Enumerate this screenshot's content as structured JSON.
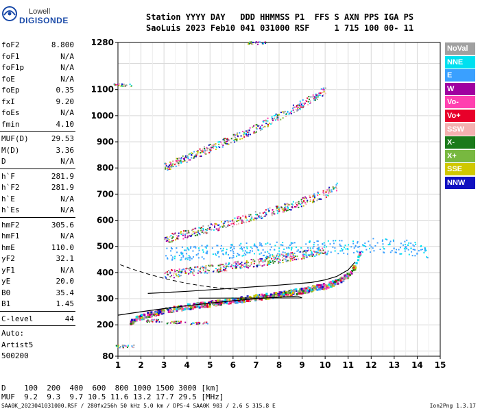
{
  "logo": {
    "line1": "Lowell",
    "line2": "DIGISONDE"
  },
  "header": {
    "line1": "Station YYYY DAY   DDD HHMMSS P1  FFS S AXN PPS IGA PS",
    "line2": "SaoLuis 2023 Feb10 041 031000 RSF     1 715 100 00- 11"
  },
  "params": {
    "group1": [
      {
        "name": "foF2",
        "value": "8.800"
      },
      {
        "name": "foF1",
        "value": "N/A"
      },
      {
        "name": "foF1p",
        "value": "N/A"
      },
      {
        "name": "foE",
        "value": "N/A"
      },
      {
        "name": "foEp",
        "value": "0.35"
      },
      {
        "name": "fxI",
        "value": "9.20"
      },
      {
        "name": "foEs",
        "value": "N/A"
      },
      {
        "name": "fmin",
        "value": "4.10"
      }
    ],
    "group2": [
      {
        "name": "MUF(D)",
        "value": "29.53"
      },
      {
        "name": "M(D)",
        "value": "3.36"
      },
      {
        "name": "D",
        "value": "N/A"
      }
    ],
    "group3": [
      {
        "name": "h`F",
        "value": "281.9"
      },
      {
        "name": "h`F2",
        "value": "281.9"
      },
      {
        "name": "h`E",
        "value": "N/A"
      },
      {
        "name": "h`Es",
        "value": "N/A"
      }
    ],
    "group4": [
      {
        "name": "hmF2",
        "value": "305.6"
      },
      {
        "name": "hmF1",
        "value": "N/A"
      },
      {
        "name": "hmE",
        "value": "110.0"
      },
      {
        "name": "yF2",
        "value": "32.1"
      },
      {
        "name": "yF1",
        "value": "N/A"
      },
      {
        "name": "yE",
        "value": "20.0"
      },
      {
        "name": "B0",
        "value": "35.4"
      },
      {
        "name": "B1",
        "value": "1.45"
      }
    ],
    "clevel": {
      "name": "C-level",
      "value": "44"
    },
    "auto": "Auto:",
    "artist": "Artist5",
    "code": "500200"
  },
  "legend": [
    {
      "label": "NoVal",
      "color": "#a0a0a0"
    },
    {
      "label": "NNE",
      "color": "#00e0f0"
    },
    {
      "label": "E",
      "color": "#3aa0ff"
    },
    {
      "label": "W",
      "color": "#a000a0"
    },
    {
      "label": "Vo-",
      "color": "#ff40b0"
    },
    {
      "label": "Vo+",
      "color": "#e8002a"
    },
    {
      "label": "SSW",
      "color": "#f4b0b0"
    },
    {
      "label": "X-",
      "color": "#1a7a1a"
    },
    {
      "label": "X+",
      "color": "#78b840"
    },
    {
      "label": "SSE",
      "color": "#d0c800"
    },
    {
      "label": "NNW",
      "color": "#1010c0"
    }
  ],
  "bottom": {
    "d_row": "D    100  200  400  600  800 1000 1500 3000 [km]",
    "muf_row": "MUF  9.2  9.3  9.7 10.5 11.6 13.2 17.7 29.5 [MHz]"
  },
  "footer": "SAA0K_2023041031000.RSF / 280fx256h 50 kHz 5.0 km / DPS-4 SAA0K 903 / 2.6 S 315.8 E",
  "version": "Ion2Png 1.3.17",
  "chart_data": {
    "type": "scatter",
    "title": "",
    "xlabel": "",
    "ylabel": "",
    "xlim": [
      1,
      15
    ],
    "ylim": [
      80,
      1280
    ],
    "xticks": [
      1,
      2,
      3,
      4,
      5,
      6,
      7,
      8,
      9,
      10,
      11,
      12,
      13,
      14,
      15
    ],
    "yticks": [
      80,
      200,
      300,
      400,
      500,
      600,
      700,
      800,
      900,
      1000,
      1100,
      1280
    ],
    "trace_lower": [
      [
        1.0,
        237
      ],
      [
        2.0,
        250
      ],
      [
        3.0,
        262
      ],
      [
        4.0,
        273
      ],
      [
        5.0,
        283
      ],
      [
        6.0,
        292
      ],
      [
        7.0,
        300
      ],
      [
        8.0,
        306
      ],
      [
        8.8,
        310
      ]
    ],
    "trace_upper": [
      [
        2.3,
        320
      ],
      [
        4.0,
        328
      ],
      [
        6.0,
        340
      ],
      [
        8.0,
        352
      ],
      [
        9.4,
        362
      ],
      [
        10.0,
        372
      ],
      [
        10.5,
        385
      ],
      [
        11.0,
        410
      ],
      [
        11.3,
        440
      ]
    ],
    "echo_traces": [
      {
        "name": "F2 first hop",
        "points": [
          [
            1.5,
            215
          ],
          [
            2.2,
            240
          ],
          [
            3.0,
            258
          ],
          [
            4.0,
            272
          ],
          [
            5.0,
            284
          ],
          [
            6.0,
            296
          ],
          [
            7.0,
            308
          ],
          [
            8.0,
            320
          ],
          [
            9.0,
            334
          ],
          [
            10.0,
            352
          ],
          [
            10.6,
            372
          ],
          [
            11.0,
            395
          ],
          [
            11.3,
            430
          ],
          [
            11.5,
            480
          ]
        ]
      },
      {
        "name": "F2 upper",
        "points": [
          [
            3.0,
            395
          ],
          [
            4.0,
            405
          ],
          [
            5.0,
            415
          ],
          [
            6.0,
            427
          ],
          [
            7.0,
            440
          ],
          [
            8.0,
            455
          ],
          [
            9.0,
            470
          ],
          [
            10.0,
            490
          ]
        ]
      },
      {
        "name": "F2 second hop",
        "points": [
          [
            3.0,
            530
          ],
          [
            4.0,
            550
          ],
          [
            5.0,
            572
          ],
          [
            6.0,
            595
          ],
          [
            7.0,
            620
          ],
          [
            8.0,
            645
          ],
          [
            9.0,
            672
          ],
          [
            10.0,
            705
          ],
          [
            10.5,
            730
          ]
        ]
      },
      {
        "name": "F2 third hop",
        "points": [
          [
            3.0,
            805
          ],
          [
            4.0,
            840
          ],
          [
            5.0,
            878
          ],
          [
            6.0,
            915
          ],
          [
            7.0,
            955
          ],
          [
            8.0,
            1000
          ],
          [
            9.0,
            1048
          ],
          [
            10.0,
            1100
          ]
        ]
      },
      {
        "name": "spread E region",
        "points": [
          [
            3.0,
            470
          ],
          [
            5.0,
            480
          ],
          [
            7.0,
            490
          ],
          [
            9.0,
            495
          ],
          [
            12.0,
            505
          ],
          [
            13.5,
            500
          ],
          [
            14.5,
            480
          ]
        ]
      },
      {
        "name": "sporadic",
        "points": [
          [
            1.3,
            120
          ],
          [
            2.5,
            218
          ],
          [
            3.5,
            212
          ],
          [
            4.5,
            208
          ],
          [
            1.2,
            1120
          ],
          [
            7.0,
            1280
          ]
        ]
      }
    ]
  }
}
